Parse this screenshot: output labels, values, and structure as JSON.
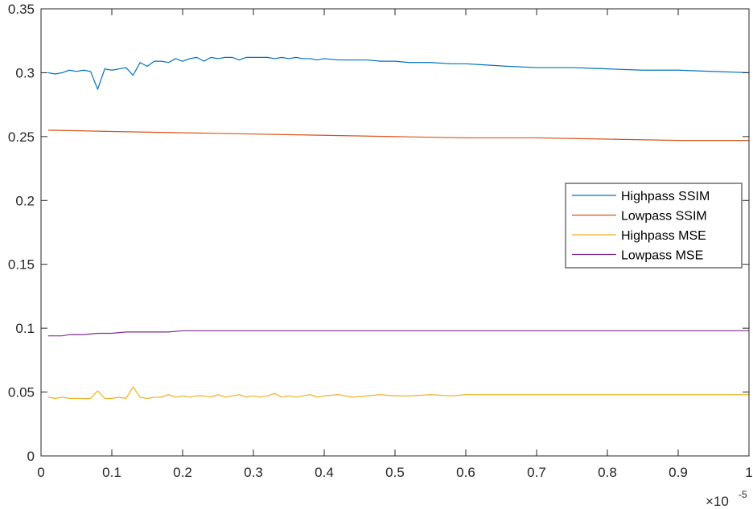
{
  "chart_data": {
    "type": "line",
    "title": "",
    "xlabel": "",
    "ylabel": "",
    "xlim": [
      0,
      1
    ],
    "ylim": [
      0,
      0.35
    ],
    "x_exponent": {
      "times": "×10",
      "power": "-5"
    },
    "xticks": [
      "0",
      "0.1",
      "0.2",
      "0.3",
      "0.4",
      "0.5",
      "0.6",
      "0.7",
      "0.8",
      "0.9",
      "1"
    ],
    "yticks": [
      "0",
      "0.05",
      "0.1",
      "0.15",
      "0.2",
      "0.25",
      "0.3",
      "0.35"
    ],
    "grid": false,
    "legend_position": "right-middle",
    "series": [
      {
        "name": "Highpass SSIM",
        "color": "#0072BD",
        "x": [
          0.01,
          0.02,
          0.03,
          0.04,
          0.05,
          0.06,
          0.07,
          0.08,
          0.09,
          0.1,
          0.11,
          0.12,
          0.13,
          0.14,
          0.15,
          0.16,
          0.17,
          0.18,
          0.19,
          0.2,
          0.21,
          0.22,
          0.23,
          0.24,
          0.25,
          0.26,
          0.27,
          0.28,
          0.29,
          0.3,
          0.31,
          0.32,
          0.33,
          0.34,
          0.35,
          0.36,
          0.37,
          0.38,
          0.39,
          0.4,
          0.42,
          0.44,
          0.46,
          0.48,
          0.5,
          0.52,
          0.55,
          0.58,
          0.6,
          0.63,
          0.66,
          0.7,
          0.75,
          0.8,
          0.85,
          0.9,
          0.95,
          1.0
        ],
        "values": [
          0.3,
          0.299,
          0.3,
          0.302,
          0.301,
          0.302,
          0.301,
          0.287,
          0.303,
          0.302,
          0.303,
          0.304,
          0.298,
          0.308,
          0.305,
          0.309,
          0.309,
          0.308,
          0.311,
          0.309,
          0.311,
          0.312,
          0.309,
          0.312,
          0.311,
          0.312,
          0.312,
          0.31,
          0.312,
          0.312,
          0.312,
          0.312,
          0.311,
          0.312,
          0.311,
          0.312,
          0.311,
          0.311,
          0.31,
          0.311,
          0.31,
          0.31,
          0.31,
          0.309,
          0.309,
          0.308,
          0.308,
          0.307,
          0.307,
          0.306,
          0.305,
          0.304,
          0.304,
          0.303,
          0.302,
          0.302,
          0.301,
          0.3
        ]
      },
      {
        "name": "Lowpass SSIM",
        "color": "#D95319",
        "x": [
          0.01,
          0.1,
          0.2,
          0.3,
          0.4,
          0.5,
          0.6,
          0.7,
          0.8,
          0.9,
          1.0
        ],
        "values": [
          0.255,
          0.254,
          0.253,
          0.252,
          0.251,
          0.25,
          0.249,
          0.249,
          0.248,
          0.247,
          0.247
        ]
      },
      {
        "name": "Highpass MSE",
        "color": "#EDB120",
        "x": [
          0.01,
          0.02,
          0.03,
          0.04,
          0.05,
          0.06,
          0.07,
          0.08,
          0.09,
          0.1,
          0.11,
          0.12,
          0.13,
          0.14,
          0.15,
          0.16,
          0.17,
          0.18,
          0.19,
          0.2,
          0.21,
          0.22,
          0.23,
          0.24,
          0.25,
          0.26,
          0.27,
          0.28,
          0.29,
          0.3,
          0.31,
          0.32,
          0.33,
          0.34,
          0.35,
          0.36,
          0.37,
          0.38,
          0.39,
          0.4,
          0.42,
          0.44,
          0.46,
          0.48,
          0.5,
          0.52,
          0.55,
          0.58,
          0.6,
          0.63,
          0.66,
          0.7,
          0.75,
          0.8,
          0.85,
          0.9,
          0.95,
          1.0
        ],
        "values": [
          0.046,
          0.045,
          0.046,
          0.045,
          0.045,
          0.045,
          0.045,
          0.051,
          0.045,
          0.045,
          0.046,
          0.045,
          0.054,
          0.046,
          0.045,
          0.046,
          0.046,
          0.048,
          0.046,
          0.047,
          0.046,
          0.047,
          0.047,
          0.046,
          0.048,
          0.046,
          0.047,
          0.048,
          0.046,
          0.047,
          0.046,
          0.047,
          0.049,
          0.046,
          0.047,
          0.046,
          0.047,
          0.048,
          0.046,
          0.047,
          0.048,
          0.046,
          0.047,
          0.048,
          0.047,
          0.047,
          0.048,
          0.047,
          0.048,
          0.048,
          0.048,
          0.048,
          0.048,
          0.048,
          0.048,
          0.048,
          0.048,
          0.048
        ]
      },
      {
        "name": "Lowpass MSE",
        "color": "#7E2F8E",
        "x": [
          0.01,
          0.02,
          0.03,
          0.04,
          0.05,
          0.06,
          0.08,
          0.1,
          0.12,
          0.15,
          0.18,
          0.2,
          0.22,
          0.25,
          0.3,
          0.4,
          0.5,
          0.6,
          0.7,
          0.8,
          0.9,
          1.0
        ],
        "values": [
          0.094,
          0.094,
          0.094,
          0.095,
          0.095,
          0.095,
          0.096,
          0.096,
          0.097,
          0.097,
          0.097,
          0.098,
          0.098,
          0.098,
          0.098,
          0.098,
          0.098,
          0.098,
          0.098,
          0.098,
          0.098,
          0.098
        ]
      }
    ]
  }
}
